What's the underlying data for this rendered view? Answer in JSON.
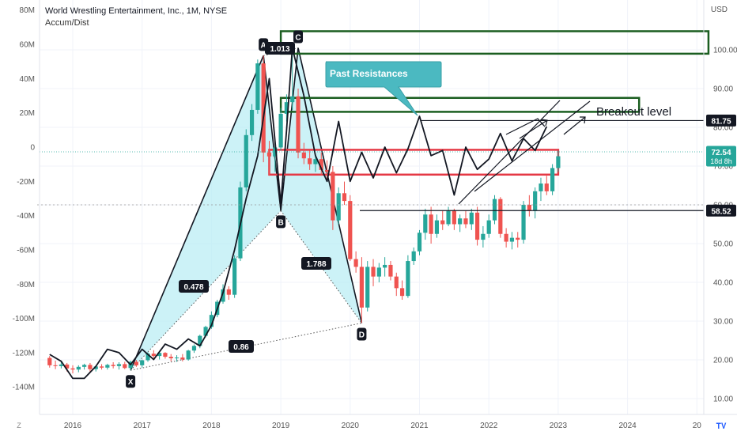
{
  "header": {
    "title": "World Wrestling Entertainment, Inc., 1M, NYSE",
    "indicator": "Accum/Dist",
    "currency": "USD"
  },
  "colors": {
    "up": "#26a69a",
    "down": "#ef5350",
    "pattern_fill": "#b7ecf4",
    "box_green": "#1b5e20",
    "box_red": "#e53945",
    "callout": "#4bb9c1",
    "price_badge": "#26a69a"
  },
  "chart_data": {
    "type": "candlestick",
    "x_ticks": [
      "2016",
      "2017",
      "2018",
      "2019",
      "2020",
      "2021",
      "2022",
      "2023",
      "2024",
      "20"
    ],
    "price_axis": {
      "ticks": [
        "10.00",
        "20.00",
        "30.00",
        "40.00",
        "50.00",
        "60.00",
        "70.00",
        "80.00",
        "90.00",
        "100.00"
      ],
      "range": [
        5,
        108
      ]
    },
    "ad_axis": {
      "ticks": [
        "80M",
        "60M",
        "40M",
        "20M",
        "0",
        "-20M",
        "-40M",
        "-60M",
        "-80M",
        "-100M",
        "-120M",
        "-140M"
      ],
      "range": [
        -146,
        84
      ]
    },
    "price_labels": {
      "current": "72.54",
      "countdown": "18d 8h",
      "breakout": "81.75",
      "support": "58.52"
    },
    "candles": [
      {
        "d": "2015-09",
        "o": 20.5,
        "h": 21.0,
        "l": 18.0,
        "c": 18.6
      },
      {
        "d": "2015-10",
        "o": 18.6,
        "h": 19.8,
        "l": 17.6,
        "c": 18.4
      },
      {
        "d": "2015-11",
        "o": 18.4,
        "h": 19.6,
        "l": 17.8,
        "c": 18.8
      },
      {
        "d": "2015-12",
        "o": 18.8,
        "h": 19.2,
        "l": 17.0,
        "c": 17.8
      },
      {
        "d": "2016-01",
        "o": 17.8,
        "h": 18.6,
        "l": 16.5,
        "c": 17.5
      },
      {
        "d": "2016-02",
        "o": 17.5,
        "h": 18.6,
        "l": 16.8,
        "c": 18.2
      },
      {
        "d": "2016-03",
        "o": 18.2,
        "h": 19.0,
        "l": 17.5,
        "c": 18.7
      },
      {
        "d": "2016-04",
        "o": 18.7,
        "h": 19.2,
        "l": 17.0,
        "c": 17.6
      },
      {
        "d": "2016-05",
        "o": 17.6,
        "h": 18.6,
        "l": 17.0,
        "c": 18.3
      },
      {
        "d": "2016-06",
        "o": 18.3,
        "h": 18.9,
        "l": 17.5,
        "c": 18.0
      },
      {
        "d": "2016-07",
        "o": 18.0,
        "h": 19.0,
        "l": 17.5,
        "c": 18.7
      },
      {
        "d": "2016-08",
        "o": 18.7,
        "h": 19.4,
        "l": 17.8,
        "c": 18.4
      },
      {
        "d": "2016-09",
        "o": 18.4,
        "h": 19.4,
        "l": 17.5,
        "c": 18.9
      },
      {
        "d": "2016-10",
        "o": 18.9,
        "h": 19.5,
        "l": 17.6,
        "c": 17.9
      },
      {
        "d": "2016-11",
        "o": 17.9,
        "h": 19.8,
        "l": 17.3,
        "c": 19.5
      },
      {
        "d": "2016-12",
        "o": 19.5,
        "h": 20.0,
        "l": 18.2,
        "c": 18.6
      },
      {
        "d": "2017-01",
        "o": 18.6,
        "h": 20.1,
        "l": 18.0,
        "c": 19.9
      },
      {
        "d": "2017-02",
        "o": 19.9,
        "h": 22.0,
        "l": 19.5,
        "c": 21.6
      },
      {
        "d": "2017-03",
        "o": 21.6,
        "h": 22.5,
        "l": 20.5,
        "c": 21.0
      },
      {
        "d": "2017-04",
        "o": 21.0,
        "h": 22.1,
        "l": 20.1,
        "c": 21.8
      },
      {
        "d": "2017-05",
        "o": 21.8,
        "h": 22.0,
        "l": 20.3,
        "c": 20.8
      },
      {
        "d": "2017-06",
        "o": 20.8,
        "h": 21.5,
        "l": 19.6,
        "c": 20.4
      },
      {
        "d": "2017-07",
        "o": 20.4,
        "h": 21.2,
        "l": 19.5,
        "c": 20.6
      },
      {
        "d": "2017-08",
        "o": 20.6,
        "h": 21.5,
        "l": 19.6,
        "c": 20.1
      },
      {
        "d": "2017-09",
        "o": 20.1,
        "h": 22.6,
        "l": 19.8,
        "c": 22.4
      },
      {
        "d": "2017-10",
        "o": 22.4,
        "h": 24.0,
        "l": 21.8,
        "c": 23.6
      },
      {
        "d": "2017-11",
        "o": 23.6,
        "h": 26.5,
        "l": 23.0,
        "c": 26.2
      },
      {
        "d": "2017-12",
        "o": 26.2,
        "h": 28.8,
        "l": 25.8,
        "c": 28.5
      },
      {
        "d": "2018-01",
        "o": 28.5,
        "h": 32.5,
        "l": 28.0,
        "c": 31.6
      },
      {
        "d": "2018-02",
        "o": 31.6,
        "h": 35.5,
        "l": 31.0,
        "c": 35.0
      },
      {
        "d": "2018-03",
        "o": 35.0,
        "h": 39.5,
        "l": 34.5,
        "c": 38.2
      },
      {
        "d": "2018-04",
        "o": 38.2,
        "h": 39.0,
        "l": 35.5,
        "c": 36.8
      },
      {
        "d": "2018-05",
        "o": 36.8,
        "h": 47.0,
        "l": 36.0,
        "c": 46.2
      },
      {
        "d": "2018-06",
        "o": 46.2,
        "h": 66.0,
        "l": 45.5,
        "c": 64.5
      },
      {
        "d": "2018-07",
        "o": 64.5,
        "h": 79.5,
        "l": 63.5,
        "c": 78.0
      },
      {
        "d": "2018-08",
        "o": 78.0,
        "h": 86.0,
        "l": 76.5,
        "c": 84.5
      },
      {
        "d": "2018-09",
        "o": 84.5,
        "h": 97.5,
        "l": 83.5,
        "c": 96.5
      },
      {
        "d": "2018-10",
        "o": 96.5,
        "h": 98.5,
        "l": 71.0,
        "c": 73.5
      },
      {
        "d": "2018-11",
        "o": 73.5,
        "h": 76.5,
        "l": 67.5,
        "c": 72.5
      },
      {
        "d": "2018-12",
        "o": 72.5,
        "h": 76.0,
        "l": 68.5,
        "c": 74.8
      },
      {
        "d": "2019-01",
        "o": 74.8,
        "h": 85.0,
        "l": 74.0,
        "c": 83.5
      },
      {
        "d": "2019-02",
        "o": 83.5,
        "h": 88.5,
        "l": 81.5,
        "c": 86.5
      },
      {
        "d": "2019-03",
        "o": 86.5,
        "h": 100.5,
        "l": 84.5,
        "c": 88.0
      },
      {
        "d": "2019-04",
        "o": 88.0,
        "h": 90.0,
        "l": 72.0,
        "c": 73.5
      },
      {
        "d": "2019-05",
        "o": 73.5,
        "h": 76.0,
        "l": 70.5,
        "c": 72.0
      },
      {
        "d": "2019-06",
        "o": 72.0,
        "h": 74.0,
        "l": 69.0,
        "c": 70.5
      },
      {
        "d": "2019-07",
        "o": 70.5,
        "h": 73.0,
        "l": 68.5,
        "c": 71.8
      },
      {
        "d": "2019-08",
        "o": 71.8,
        "h": 73.5,
        "l": 67.5,
        "c": 69.0
      },
      {
        "d": "2019-09",
        "o": 69.0,
        "h": 71.5,
        "l": 66.5,
        "c": 68.5
      },
      {
        "d": "2019-10",
        "o": 68.5,
        "h": 70.0,
        "l": 53.5,
        "c": 56.0
      },
      {
        "d": "2019-11",
        "o": 56.0,
        "h": 64.5,
        "l": 55.0,
        "c": 63.0
      },
      {
        "d": "2019-12",
        "o": 63.0,
        "h": 66.0,
        "l": 60.0,
        "c": 61.0
      },
      {
        "d": "2020-01",
        "o": 61.0,
        "h": 62.5,
        "l": 45.5,
        "c": 46.0
      },
      {
        "d": "2020-02",
        "o": 46.0,
        "h": 48.0,
        "l": 42.5,
        "c": 44.0
      },
      {
        "d": "2020-03",
        "o": 44.0,
        "h": 46.5,
        "l": 29.5,
        "c": 33.5
      },
      {
        "d": "2020-04",
        "o": 33.5,
        "h": 45.5,
        "l": 32.5,
        "c": 44.0
      },
      {
        "d": "2020-05",
        "o": 44.0,
        "h": 46.0,
        "l": 39.0,
        "c": 41.5
      },
      {
        "d": "2020-06",
        "o": 41.5,
        "h": 45.0,
        "l": 40.0,
        "c": 43.8
      },
      {
        "d": "2020-07",
        "o": 43.8,
        "h": 46.5,
        "l": 41.5,
        "c": 44.5
      },
      {
        "d": "2020-08",
        "o": 44.5,
        "h": 45.5,
        "l": 40.5,
        "c": 41.5
      },
      {
        "d": "2020-09",
        "o": 41.5,
        "h": 42.5,
        "l": 36.5,
        "c": 38.5
      },
      {
        "d": "2020-10",
        "o": 38.5,
        "h": 40.5,
        "l": 35.5,
        "c": 36.5
      },
      {
        "d": "2020-11",
        "o": 36.5,
        "h": 47.0,
        "l": 36.0,
        "c": 45.5
      },
      {
        "d": "2020-12",
        "o": 45.5,
        "h": 49.0,
        "l": 44.5,
        "c": 48.0
      },
      {
        "d": "2021-01",
        "o": 48.0,
        "h": 53.5,
        "l": 47.0,
        "c": 52.8
      },
      {
        "d": "2021-02",
        "o": 52.8,
        "h": 59.0,
        "l": 51.0,
        "c": 57.5
      },
      {
        "d": "2021-03",
        "o": 57.5,
        "h": 59.5,
        "l": 50.0,
        "c": 52.5
      },
      {
        "d": "2021-04",
        "o": 52.5,
        "h": 57.5,
        "l": 51.5,
        "c": 56.0
      },
      {
        "d": "2021-05",
        "o": 56.0,
        "h": 58.5,
        "l": 53.5,
        "c": 55.0
      },
      {
        "d": "2021-06",
        "o": 55.0,
        "h": 59.5,
        "l": 54.5,
        "c": 58.5
      },
      {
        "d": "2021-07",
        "o": 58.5,
        "h": 59.0,
        "l": 53.5,
        "c": 55.0
      },
      {
        "d": "2021-08",
        "o": 55.0,
        "h": 57.5,
        "l": 53.0,
        "c": 56.5
      },
      {
        "d": "2021-09",
        "o": 56.5,
        "h": 58.5,
        "l": 54.0,
        "c": 55.0
      },
      {
        "d": "2021-10",
        "o": 55.0,
        "h": 59.0,
        "l": 53.5,
        "c": 58.0
      },
      {
        "d": "2021-11",
        "o": 58.0,
        "h": 59.5,
        "l": 49.5,
        "c": 51.0
      },
      {
        "d": "2021-12",
        "o": 51.0,
        "h": 54.5,
        "l": 49.0,
        "c": 52.5
      },
      {
        "d": "2022-01",
        "o": 52.5,
        "h": 57.5,
        "l": 51.5,
        "c": 56.0
      },
      {
        "d": "2022-02",
        "o": 56.0,
        "h": 62.5,
        "l": 55.0,
        "c": 61.5
      },
      {
        "d": "2022-03",
        "o": 61.5,
        "h": 62.0,
        "l": 51.5,
        "c": 52.5
      },
      {
        "d": "2022-04",
        "o": 52.5,
        "h": 54.0,
        "l": 49.0,
        "c": 50.5
      },
      {
        "d": "2022-05",
        "o": 50.5,
        "h": 53.0,
        "l": 48.5,
        "c": 51.5
      },
      {
        "d": "2022-06",
        "o": 51.5,
        "h": 53.0,
        "l": 49.0,
        "c": 51.0
      },
      {
        "d": "2022-07",
        "o": 51.0,
        "h": 61.0,
        "l": 50.0,
        "c": 60.0
      },
      {
        "d": "2022-08",
        "o": 60.0,
        "h": 62.5,
        "l": 57.0,
        "c": 58.5
      },
      {
        "d": "2022-09",
        "o": 58.5,
        "h": 64.5,
        "l": 56.5,
        "c": 63.5
      },
      {
        "d": "2022-10",
        "o": 63.5,
        "h": 67.0,
        "l": 61.0,
        "c": 65.5
      },
      {
        "d": "2022-11",
        "o": 65.5,
        "h": 67.5,
        "l": 62.5,
        "c": 63.5
      },
      {
        "d": "2022-12",
        "o": 63.5,
        "h": 70.5,
        "l": 62.5,
        "c": 69.5
      },
      {
        "d": "2023-01",
        "o": 69.5,
        "h": 74.0,
        "l": 68.5,
        "c": 72.54
      }
    ],
    "accum_dist": [
      {
        "d": "2015-09",
        "v": -121
      },
      {
        "d": "2015-11",
        "v": -125
      },
      {
        "d": "2016-01",
        "v": -135
      },
      {
        "d": "2016-03",
        "v": -135
      },
      {
        "d": "2016-05",
        "v": -128
      },
      {
        "d": "2016-07",
        "v": -118
      },
      {
        "d": "2016-09",
        "v": -120
      },
      {
        "d": "2016-11",
        "v": -127
      },
      {
        "d": "2017-01",
        "v": -118
      },
      {
        "d": "2017-03",
        "v": -124
      },
      {
        "d": "2017-05",
        "v": -115
      },
      {
        "d": "2017-07",
        "v": -118
      },
      {
        "d": "2017-09",
        "v": -112
      },
      {
        "d": "2017-11",
        "v": -116
      },
      {
        "d": "2018-01",
        "v": -104
      },
      {
        "d": "2018-03",
        "v": -85
      },
      {
        "d": "2018-05",
        "v": -60
      },
      {
        "d": "2018-07",
        "v": -30
      },
      {
        "d": "2018-09",
        "v": -5
      },
      {
        "d": "2018-11",
        "v": 40
      },
      {
        "d": "2019-01",
        "v": -33
      },
      {
        "d": "2019-02",
        "v": 10
      },
      {
        "d": "2019-03",
        "v": 58
      },
      {
        "d": "2019-05",
        "v": 30
      },
      {
        "d": "2019-07",
        "v": -5
      },
      {
        "d": "2019-09",
        "v": -20
      },
      {
        "d": "2019-11",
        "v": 15
      },
      {
        "d": "2020-01",
        "v": -20
      },
      {
        "d": "2020-03",
        "v": -3
      },
      {
        "d": "2020-05",
        "v": -18
      },
      {
        "d": "2020-07",
        "v": 0
      },
      {
        "d": "2020-09",
        "v": -15
      },
      {
        "d": "2020-11",
        "v": -1
      },
      {
        "d": "2021-01",
        "v": 18
      },
      {
        "d": "2021-03",
        "v": -5
      },
      {
        "d": "2021-05",
        "v": -2
      },
      {
        "d": "2021-07",
        "v": -28
      },
      {
        "d": "2021-09",
        "v": 0
      },
      {
        "d": "2021-11",
        "v": -13
      },
      {
        "d": "2022-01",
        "v": -7
      },
      {
        "d": "2022-03",
        "v": 8
      },
      {
        "d": "2022-05",
        "v": -8
      },
      {
        "d": "2022-07",
        "v": 5
      },
      {
        "d": "2022-09",
        "v": -2
      },
      {
        "d": "2022-11",
        "v": 12
      }
    ],
    "pattern_points": [
      {
        "label": "X",
        "d": "2016-11",
        "price": 17.3
      },
      {
        "label": "A",
        "d": "2018-10",
        "price": 98.5
      },
      {
        "label": "B",
        "d": "2019-01",
        "price": 58.5
      },
      {
        "label": "C",
        "d": "2019-04",
        "price": 100.5
      },
      {
        "label": "D",
        "d": "2020-03",
        "price": 29.5
      }
    ],
    "ratios": [
      {
        "text": "0.478",
        "between": "X-B"
      },
      {
        "text": "1.013",
        "between": "A-C"
      },
      {
        "text": "1.788",
        "between": "B-D"
      },
      {
        "text": "0.86",
        "between": "X-D"
      }
    ],
    "zones": [
      {
        "color": "green",
        "from": "2019-01",
        "to": "2025-03",
        "low": 99,
        "high": 104.8
      },
      {
        "color": "green",
        "from": "2019-01",
        "to": "2024-03",
        "low": 84,
        "high": 87.6
      },
      {
        "color": "red",
        "from": "2018-11",
        "to": "2023-01",
        "low": 67.8,
        "high": 74.2
      }
    ],
    "annotations": {
      "callout": "Past Resistances",
      "breakout": "Breakout level"
    }
  }
}
